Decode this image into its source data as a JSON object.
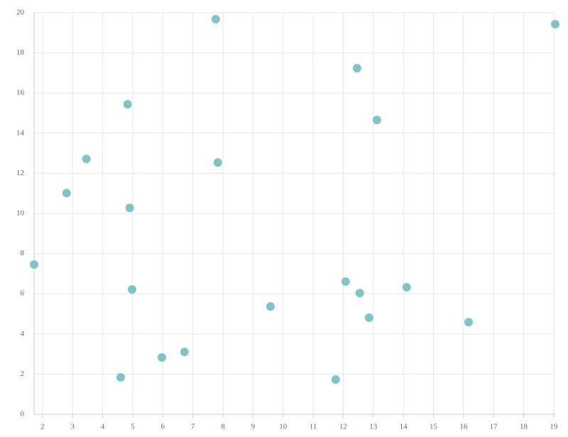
{
  "chart_data": {
    "type": "scatter",
    "color": "#7fc4c7",
    "grid": true,
    "x": [
      7.76,
      19.05,
      12.46,
      4.83,
      13.12,
      3.46,
      7.83,
      2.8,
      4.9,
      1.72,
      12.08,
      4.98,
      12.55,
      14.11,
      9.58,
      12.86,
      16.17,
      6.72,
      5.97,
      4.6,
      11.75
    ],
    "values": [
      19.68,
      19.43,
      17.24,
      15.44,
      14.66,
      12.72,
      12.54,
      11.02,
      10.28,
      7.46,
      6.61,
      6.22,
      6.04,
      6.33,
      5.37,
      4.81,
      4.59,
      3.11,
      2.83,
      1.84,
      1.73
    ],
    "xlim": [
      1.72,
      19.05
    ],
    "ylim": [
      0,
      20
    ],
    "xticks": [
      2,
      3,
      4,
      5,
      6,
      7,
      8,
      9,
      10,
      11,
      12,
      13,
      14,
      15,
      16,
      17,
      18,
      19
    ],
    "yticks": [
      0,
      2,
      4,
      6,
      8,
      10,
      12,
      14,
      16,
      18,
      20
    ]
  }
}
